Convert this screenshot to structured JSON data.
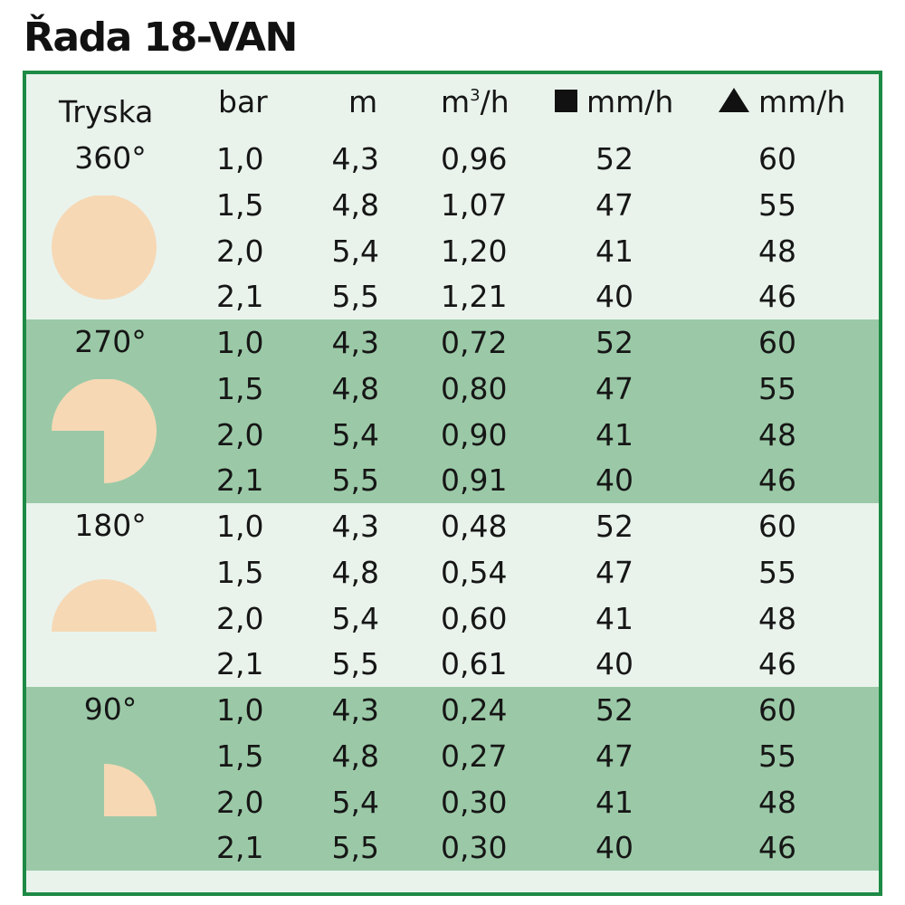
{
  "title": "Řada 18-VAN",
  "colors": {
    "border": "#1d8a45",
    "light_band": "#e9f3ec",
    "dark_band": "#9bc9a7",
    "nozzle_fill": "#f6d8b5"
  },
  "header": {
    "nozzle": "Tryska",
    "pressure": "bar",
    "radius": "m",
    "flow_base": "m",
    "flow_exp": "3",
    "flow_tail": "/h",
    "square_rate": "mm/h",
    "triangle_rate": "mm/h",
    "square_icon": "black-square-icon",
    "triangle_icon": "black-triangle-icon"
  },
  "groups": [
    {
      "angle": "360°",
      "icon": "full-circle-pattern-icon",
      "rows": [
        {
          "bar": "1,0",
          "m": "4,3",
          "flow": "0,96",
          "sq": "52",
          "tri": "60"
        },
        {
          "bar": "1,5",
          "m": "4,8",
          "flow": "1,07",
          "sq": "47",
          "tri": "55"
        },
        {
          "bar": "2,0",
          "m": "5,4",
          "flow": "1,20",
          "sq": "41",
          "tri": "48"
        },
        {
          "bar": "2,1",
          "m": "5,5",
          "flow": "1,21",
          "sq": "40",
          "tri": "46"
        }
      ]
    },
    {
      "angle": "270°",
      "icon": "three-quarter-circle-pattern-icon",
      "rows": [
        {
          "bar": "1,0",
          "m": "4,3",
          "flow": "0,72",
          "sq": "52",
          "tri": "60"
        },
        {
          "bar": "1,5",
          "m": "4,8",
          "flow": "0,80",
          "sq": "47",
          "tri": "55"
        },
        {
          "bar": "2,0",
          "m": "5,4",
          "flow": "0,90",
          "sq": "41",
          "tri": "48"
        },
        {
          "bar": "2,1",
          "m": "5,5",
          "flow": "0,91",
          "sq": "40",
          "tri": "46"
        }
      ]
    },
    {
      "angle": "180°",
      "icon": "half-circle-pattern-icon",
      "rows": [
        {
          "bar": "1,0",
          "m": "4,3",
          "flow": "0,48",
          "sq": "52",
          "tri": "60"
        },
        {
          "bar": "1,5",
          "m": "4,8",
          "flow": "0,54",
          "sq": "47",
          "tri": "55"
        },
        {
          "bar": "2,0",
          "m": "5,4",
          "flow": "0,60",
          "sq": "41",
          "tri": "48"
        },
        {
          "bar": "2,1",
          "m": "5,5",
          "flow": "0,61",
          "sq": "40",
          "tri": "46"
        }
      ]
    },
    {
      "angle": "90°",
      "icon": "quarter-circle-pattern-icon",
      "rows": [
        {
          "bar": "1,0",
          "m": "4,3",
          "flow": "0,24",
          "sq": "52",
          "tri": "60"
        },
        {
          "bar": "1,5",
          "m": "4,8",
          "flow": "0,27",
          "sq": "47",
          "tri": "55"
        },
        {
          "bar": "2,0",
          "m": "5,4",
          "flow": "0,30",
          "sq": "41",
          "tri": "48"
        },
        {
          "bar": "2,1",
          "m": "5,5",
          "flow": "0,30",
          "sq": "40",
          "tri": "46"
        }
      ]
    }
  ]
}
